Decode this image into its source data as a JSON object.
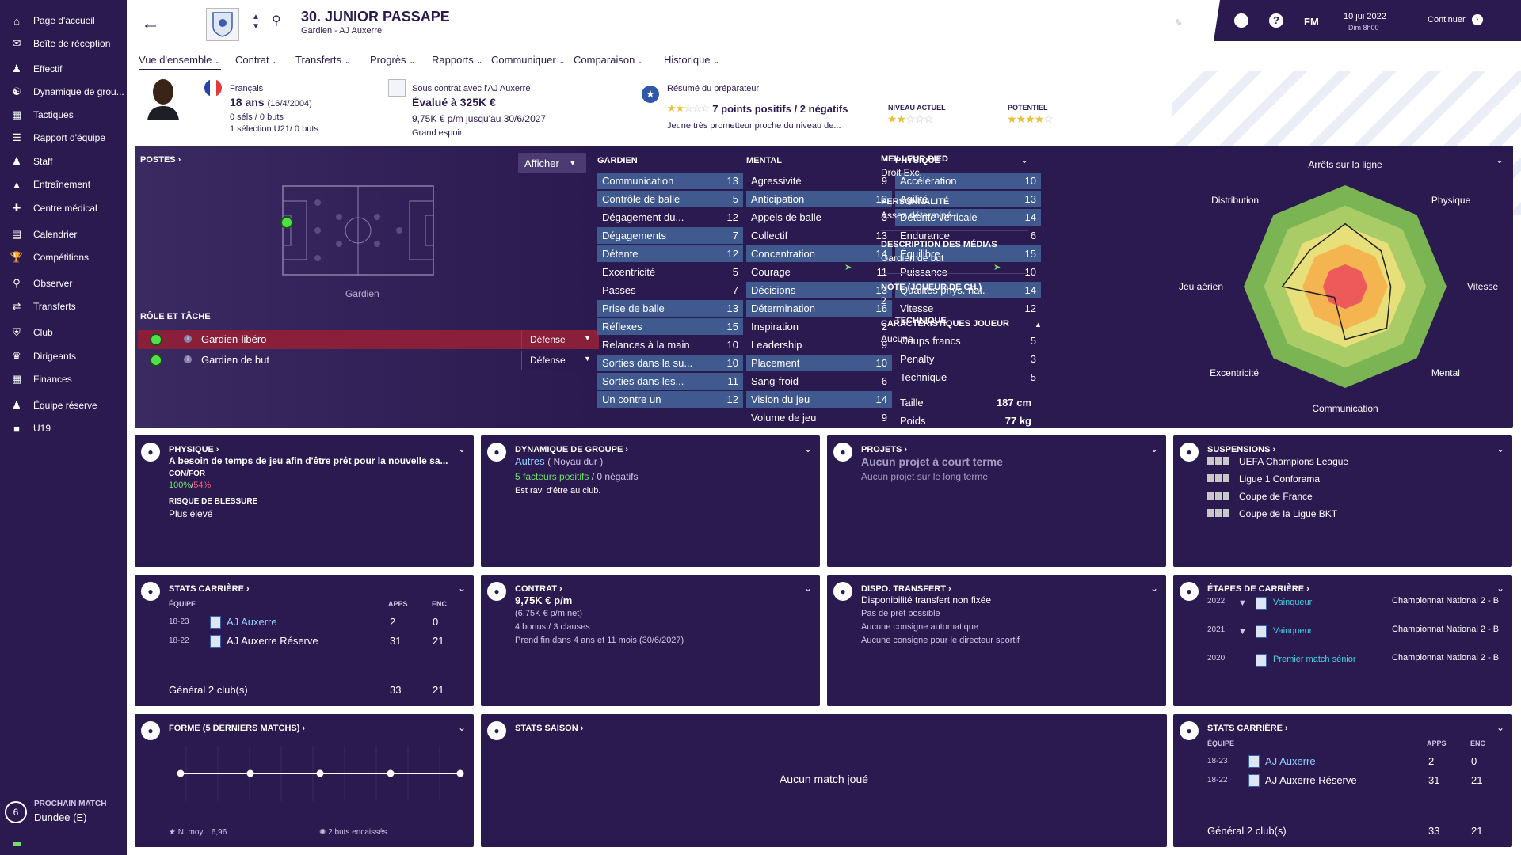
{
  "sidebar": {
    "items": [
      {
        "label": "Page d'accueil",
        "icon": "home-icon"
      },
      {
        "label": "Boîte de réception",
        "icon": "inbox-icon"
      },
      {
        "label": "Effectif",
        "icon": "squad-icon"
      },
      {
        "label": "Dynamique de grou...",
        "icon": "dynamics-icon"
      },
      {
        "label": "Tactiques",
        "icon": "tactics-icon"
      },
      {
        "label": "Rapport d'équipe",
        "icon": "report-icon"
      },
      {
        "label": "Staff",
        "icon": "staff-icon"
      },
      {
        "label": "Entraînement",
        "icon": "training-icon"
      },
      {
        "label": "Centre médical",
        "icon": "medical-icon"
      },
      {
        "label": "Calendrier",
        "icon": "calendar-icon"
      },
      {
        "label": "Compétitions",
        "icon": "trophy-icon"
      },
      {
        "label": "Observer",
        "icon": "scout-icon"
      },
      {
        "label": "Transferts",
        "icon": "transfer-icon"
      },
      {
        "label": "Club",
        "icon": "club-icon"
      },
      {
        "label": "Dirigeants",
        "icon": "board-icon"
      },
      {
        "label": "Finances",
        "icon": "finance-icon"
      },
      {
        "label": "Équipe réserve",
        "icon": "reserve-icon"
      },
      {
        "label": "U19",
        "icon": "u19-icon"
      }
    ],
    "next_match": {
      "title": "PROCHAIN MATCH",
      "opponent": "Dundee (E)",
      "days": "6"
    }
  },
  "header": {
    "player_name": "30. JUNIOR PASSAPE",
    "subtitle": "Gardien - AJ Auxerre",
    "date": "10 jui 2022",
    "time": "Dim 8h00",
    "fm": "FM",
    "continue": "Continuer"
  },
  "tabs": [
    "Vue d'ensemble",
    "Contrat",
    "Transferts",
    "Progrès",
    "Rapports",
    "Communiquer",
    "Comparaison",
    "Historique"
  ],
  "info": {
    "nationality": "Français",
    "age": "18 ans",
    "dob": "(16/4/2004)",
    "caps": "0 séls / 0 buts",
    "u21": "1 sélection U21/ 0 buts",
    "contract_line": "Sous contrat avec l'AJ Auxerre",
    "value": "Évalué à 325K €",
    "wage": "9,75K € p/m jusqu'au 30/6/2027",
    "status": "Grand espoir",
    "scout_title": "Résumé du préparateur",
    "scout_points": "7 points positifs / 2 négatifs",
    "scout_desc": "Jeune très prometteur proche du niveau de...",
    "current_label": "NIVEAU ACTUEL",
    "potential_label": "POTENTIEL",
    "current_stars": 2,
    "potential_stars": 3.5
  },
  "positions": {
    "title": "POSTES",
    "show_button": "Afficher",
    "position_label": "Gardien",
    "role_title": "RÔLE ET TÂCHE",
    "roles": [
      {
        "name": "Gardien-libéro",
        "duty": "Défense"
      },
      {
        "name": "Gardien de but",
        "duty": "Défense"
      }
    ]
  },
  "attributes": {
    "gk_title": "GARDIEN",
    "mental_title": "MENTAL",
    "physical_title": "PHYSIQUE",
    "technical_title": "TECHNIQUE",
    "gk": [
      [
        "Communication",
        "13"
      ],
      [
        "Contrôle de balle",
        "5"
      ],
      [
        "Dégagement du...",
        "12"
      ],
      [
        "Dégagements",
        "7"
      ],
      [
        "Détente",
        "12"
      ],
      [
        "Excentricité",
        "5"
      ],
      [
        "Passes",
        "7"
      ],
      [
        "Prise de balle",
        "13"
      ],
      [
        "Réflexes",
        "15"
      ],
      [
        "Relances à la main",
        "10"
      ],
      [
        "Sorties dans la su...",
        "10"
      ],
      [
        "Sorties dans les...",
        "11"
      ],
      [
        "Un contre un",
        "12"
      ]
    ],
    "mental": [
      [
        "Agressivité",
        "9"
      ],
      [
        "Anticipation",
        "12"
      ],
      [
        "Appels de balle",
        "3"
      ],
      [
        "Collectif",
        "13"
      ],
      [
        "Concentration",
        "14"
      ],
      [
        "Courage",
        "11"
      ],
      [
        "Décisions",
        "13"
      ],
      [
        "Détermination",
        "16"
      ],
      [
        "Inspiration",
        "2"
      ],
      [
        "Leadership",
        "9"
      ],
      [
        "Placement",
        "10"
      ],
      [
        "Sang-froid",
        "6"
      ],
      [
        "Vision du jeu",
        "14"
      ],
      [
        "Volume de jeu",
        "9"
      ]
    ],
    "physical": [
      [
        "Accélération",
        "10"
      ],
      [
        "Agilité",
        "13"
      ],
      [
        "Détente verticale",
        "14"
      ],
      [
        "Endurance",
        "6"
      ],
      [
        "Équilibre",
        "15"
      ],
      [
        "Puissance",
        "10"
      ],
      [
        "Qualités phys. nat.",
        "14"
      ],
      [
        "Vitesse",
        "12"
      ]
    ],
    "technical": [
      [
        "Coups francs",
        "5"
      ],
      [
        "Penalty",
        "3"
      ],
      [
        "Technique",
        "5"
      ]
    ],
    "height_label": "Taille",
    "height": "187 cm",
    "weight_label": "Poids",
    "weight": "77 kg"
  },
  "details": {
    "foot_title": "MEILLEUR PIED",
    "foot": "Droit Exc.",
    "personality_title": "PERSONNALITÉ",
    "personality": "Assez déterminé",
    "media_title": "DESCRIPTION DES MÉDIAS",
    "media": "Gardien de but",
    "rating_title": "NOTE (JOUEUR DE CH.)",
    "rating": "2",
    "traits_title": "CARACTÉRISTIQUES JOUEUR",
    "traits": "Aucune"
  },
  "radar": {
    "labels": [
      "Arrêts sur la ligne",
      "Physique",
      "Vitesse",
      "Mental",
      "Communication",
      "Excentricité",
      "Jeu aérien",
      "Distribution"
    ],
    "values": [
      0.62,
      0.5,
      0.45,
      0.58,
      0.52,
      0.15,
      0.62,
      0.5
    ]
  },
  "cards": {
    "physique": {
      "title": "PHYSIQUE",
      "text": "A besoin de temps de jeu afin d'être prêt pour la nouvelle sa...",
      "conf_label": "CON/FOR",
      "conf1": "100%",
      "conf2": "54%",
      "injury_label": "RISQUE DE BLESSURE",
      "injury": "Plus élevé"
    },
    "dynamics": {
      "title": "DYNAMIQUE DE GROUPE",
      "group": "Autres",
      "group_sub": "( Noyau dur )",
      "positive": "5 facteurs positifs",
      "negative": "0 négatifs",
      "note": "Est ravi d'être au club."
    },
    "projects": {
      "title": "PROJETS",
      "short": "Aucun projet à court terme",
      "long": "Aucun projet sur le long terme"
    },
    "suspensions": {
      "title": "SUSPENSIONS",
      "items": [
        "UEFA Champions League",
        "Ligue 1 Conforama",
        "Coupe de France",
        "Coupe de la Ligue BKT"
      ]
    },
    "career": {
      "title": "STATS CARRIÈRE",
      "col_team": "ÉQUIPE",
      "col_apps": "APPS",
      "col_enc": "ENC",
      "rows": [
        [
          "18-23",
          "AJ Auxerre",
          "2",
          "0"
        ],
        [
          "18-22",
          "AJ Auxerre Réserve",
          "31",
          "21"
        ]
      ],
      "total_label": "Général 2 club(s)",
      "total_apps": "33",
      "total_enc": "21"
    },
    "contract": {
      "title": "CONTRAT",
      "wage": "9,75K € p/m",
      "net": "(6,75K € p/m net)",
      "bonus": "4 bonus / 3 clauses",
      "end": "Prend fin dans 4 ans et 11 mois (30/6/2027)"
    },
    "transfer": {
      "title": "DISPO. TRANSFERT",
      "status": "Disponibilité transfert non fixée",
      "l1": "Pas de prêt possible",
      "l2": "Aucune consigne automatique",
      "l3": "Aucune consigne pour le directeur sportif"
    },
    "milestones": {
      "title": "ÉTAPES DE CARRIÈRE",
      "rows": [
        [
          "2022",
          "Vainqueur",
          "Championnat National 2 - B"
        ],
        [
          "2021",
          "Vainqueur",
          "Championnat National 2 - B"
        ],
        [
          "2020",
          "Premier match sénior",
          "Championnat National 2 - B"
        ]
      ]
    },
    "form": {
      "title": "FORME (5 DERNIERS MATCHS)",
      "avg": "N. moy. : 6,96",
      "goals": "2 buts encaissés"
    },
    "season": {
      "title": "STATS SAISON",
      "empty": "Aucun match joué"
    }
  }
}
